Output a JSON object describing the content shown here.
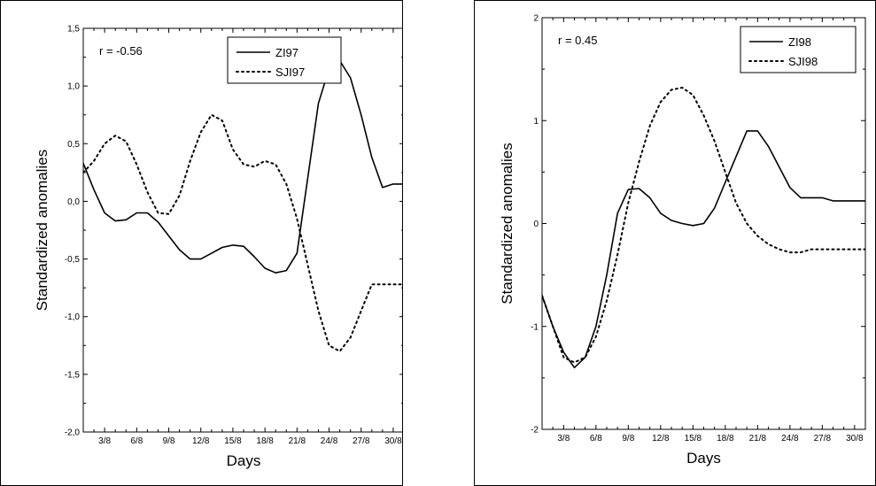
{
  "chart_data": [
    {
      "type": "line",
      "annotation": "r = -0.56",
      "xlabel": "Days",
      "ylabel": "Standardized anomalies",
      "xlim": [
        1,
        31
      ],
      "ylim": [
        -2.0,
        1.5
      ],
      "x_ticks": [
        3,
        6,
        9,
        12,
        15,
        18,
        21,
        24,
        27,
        30
      ],
      "x_tick_labels": [
        "3/8",
        "6/8",
        "9/8",
        "12/8",
        "15/8",
        "18/8",
        "21/8",
        "24/8",
        "27/8",
        "30/8"
      ],
      "y_ticks": [
        -2.0,
        -1.5,
        -1.0,
        -0.5,
        0.0,
        0.5,
        1.0,
        1.5
      ],
      "y_tick_labels": [
        "-2,0",
        "-1,5",
        "-1,0",
        "-0,5",
        "0,0",
        "0,5",
        "1,0",
        "1,5"
      ],
      "legend_position": "top-right",
      "series": [
        {
          "name": "ZI97",
          "style": "solid",
          "x": [
            1,
            2,
            3,
            4,
            5,
            6,
            7,
            8,
            9,
            10,
            11,
            12,
            13,
            14,
            15,
            16,
            17,
            18,
            19,
            20,
            21,
            22,
            23,
            24,
            25,
            26,
            27,
            28,
            29,
            30,
            31
          ],
          "values": [
            0.33,
            0.1,
            -0.1,
            -0.17,
            -0.16,
            -0.1,
            -0.1,
            -0.18,
            -0.3,
            -0.42,
            -0.5,
            -0.5,
            -0.45,
            -0.4,
            -0.38,
            -0.39,
            -0.48,
            -0.58,
            -0.62,
            -0.6,
            -0.45,
            0.2,
            0.85,
            1.15,
            1.22,
            1.07,
            0.75,
            0.38,
            0.12,
            0.15,
            0.15
          ]
        },
        {
          "name": "SJI97",
          "style": "dotted",
          "x": [
            1,
            2,
            3,
            4,
            5,
            6,
            7,
            8,
            9,
            10,
            11,
            12,
            13,
            14,
            15,
            16,
            17,
            18,
            19,
            20,
            21,
            22,
            23,
            24,
            25,
            26,
            27,
            28,
            29,
            30,
            31
          ],
          "values": [
            0.25,
            0.35,
            0.5,
            0.57,
            0.52,
            0.32,
            0.08,
            -0.1,
            -0.11,
            0.05,
            0.35,
            0.6,
            0.75,
            0.7,
            0.45,
            0.32,
            0.3,
            0.35,
            0.32,
            0.15,
            -0.15,
            -0.55,
            -0.95,
            -1.25,
            -1.3,
            -1.18,
            -0.95,
            -0.72,
            -0.72,
            -0.72,
            -0.72
          ]
        }
      ]
    },
    {
      "type": "line",
      "annotation": "r = 0.45",
      "xlabel": "Days",
      "ylabel": "Standardized anomalies",
      "xlim": [
        1,
        31
      ],
      "ylim": [
        -2,
        2
      ],
      "x_ticks": [
        3,
        6,
        9,
        12,
        15,
        18,
        21,
        24,
        27,
        30
      ],
      "x_tick_labels": [
        "3/8",
        "6/8",
        "9/8",
        "12/8",
        "15/8",
        "18/8",
        "21/8",
        "24/8",
        "27/8",
        "30/8"
      ],
      "y_ticks": [
        -2,
        -1,
        0,
        1,
        2
      ],
      "y_tick_labels": [
        "-2",
        "-1",
        "0",
        "1",
        "2"
      ],
      "legend_position": "top-right",
      "series": [
        {
          "name": "ZI98",
          "style": "solid",
          "x": [
            1,
            2,
            3,
            4,
            5,
            6,
            7,
            8,
            9,
            10,
            11,
            12,
            13,
            14,
            15,
            16,
            17,
            18,
            19,
            20,
            21,
            22,
            23,
            24,
            25,
            26,
            27,
            28,
            29,
            30,
            31
          ],
          "values": [
            -0.7,
            -1.0,
            -1.25,
            -1.4,
            -1.3,
            -1.0,
            -0.5,
            0.1,
            0.33,
            0.34,
            0.25,
            0.1,
            0.03,
            0.0,
            -0.02,
            0.0,
            0.15,
            0.4,
            0.65,
            0.9,
            0.9,
            0.75,
            0.55,
            0.35,
            0.25,
            0.25,
            0.25,
            0.22,
            0.22,
            0.22,
            0.22
          ]
        },
        {
          "name": "SJI98",
          "style": "dotted",
          "x": [
            1,
            2,
            3,
            4,
            5,
            6,
            7,
            8,
            9,
            10,
            11,
            12,
            13,
            14,
            15,
            16,
            17,
            18,
            19,
            20,
            21,
            22,
            23,
            24,
            25,
            26,
            27,
            28,
            29,
            30,
            31
          ],
          "values": [
            -0.7,
            -1.0,
            -1.3,
            -1.35,
            -1.3,
            -1.1,
            -0.75,
            -0.3,
            0.2,
            0.6,
            0.95,
            1.18,
            1.3,
            1.32,
            1.25,
            1.05,
            0.8,
            0.5,
            0.2,
            0.0,
            -0.12,
            -0.2,
            -0.25,
            -0.28,
            -0.28,
            -0.25,
            -0.25,
            -0.25,
            -0.25,
            -0.25,
            -0.25
          ]
        }
      ]
    }
  ]
}
